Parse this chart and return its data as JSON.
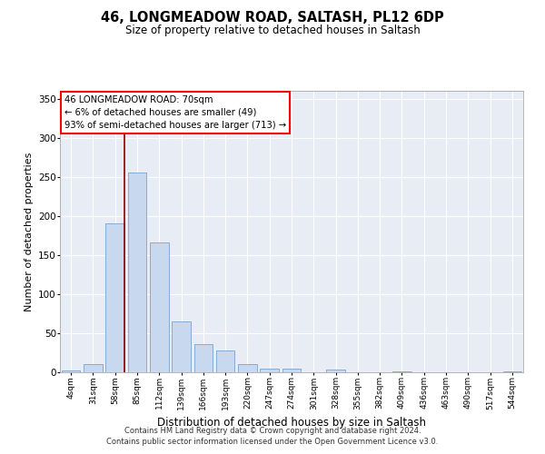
{
  "title": "46, LONGMEADOW ROAD, SALTASH, PL12 6DP",
  "subtitle": "Size of property relative to detached houses in Saltash",
  "xlabel": "Distribution of detached houses by size in Saltash",
  "ylabel": "Number of detached properties",
  "bar_color": "#c8d9ef",
  "bar_edge_color": "#7aa3cc",
  "background_color": "#e8edf5",
  "grid_color": "#ffffff",
  "categories": [
    "4sqm",
    "31sqm",
    "58sqm",
    "85sqm",
    "112sqm",
    "139sqm",
    "166sqm",
    "193sqm",
    "220sqm",
    "247sqm",
    "274sqm",
    "301sqm",
    "328sqm",
    "355sqm",
    "382sqm",
    "409sqm",
    "436sqm",
    "463sqm",
    "490sqm",
    "517sqm",
    "544sqm"
  ],
  "values": [
    2,
    10,
    191,
    255,
    166,
    65,
    36,
    28,
    11,
    5,
    5,
    0,
    3,
    0,
    0,
    1,
    0,
    0,
    0,
    0,
    1
  ],
  "ylim": [
    0,
    360
  ],
  "yticks": [
    0,
    50,
    100,
    150,
    200,
    250,
    300,
    350
  ],
  "annotation_box_text": "46 LONGMEADOW ROAD: 70sqm\n← 6% of detached houses are smaller (49)\n93% of semi-detached houses are larger (713) →",
  "red_line_x": 2.42,
  "footer_line1": "Contains HM Land Registry data © Crown copyright and database right 2024.",
  "footer_line2": "Contains public sector information licensed under the Open Government Licence v3.0."
}
